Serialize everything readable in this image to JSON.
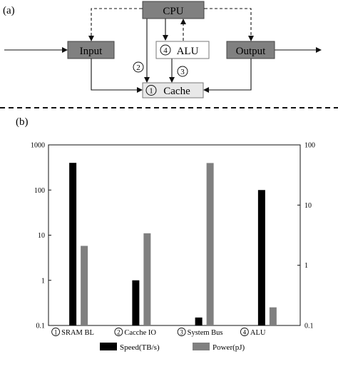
{
  "panel_a": {
    "label": "(a)",
    "boxes": {
      "cpu": "CPU",
      "input": "Input",
      "output": "Output",
      "alu_num": "4",
      "alu": "ALU",
      "cache_num": "1",
      "cache": "Cache"
    },
    "path_labels": {
      "p2": "2",
      "p3": "3"
    },
    "colors": {
      "box_fill": "#808080",
      "light_box_fill": "#e8e8e8"
    }
  },
  "panel_b": {
    "label": "(b)"
  },
  "chart_data": {
    "type": "bar",
    "categories": [
      "SRAM BL",
      "Cacche IO",
      "System Bus",
      "ALU"
    ],
    "category_markers": [
      "1",
      "2",
      "3",
      "4"
    ],
    "left_axis": {
      "scale": "log",
      "ylim": [
        0.1,
        1000
      ],
      "ticks": [
        "0.1",
        "1",
        "10",
        "100",
        "1000"
      ]
    },
    "right_axis": {
      "scale": "log",
      "ylim": [
        0.1,
        100
      ],
      "ticks": [
        "0.1",
        "1",
        "10",
        "100"
      ]
    },
    "series": [
      {
        "name": "Speed(TB/s)",
        "axis": "left",
        "color": "#000000",
        "values": [
          400,
          1,
          0.15,
          100
        ]
      },
      {
        "name": "Power(pJ)",
        "axis": "right",
        "color": "#808080",
        "values": [
          2.1,
          3.4,
          50,
          0.2
        ]
      }
    ],
    "legend": "bottom",
    "grid": false
  }
}
